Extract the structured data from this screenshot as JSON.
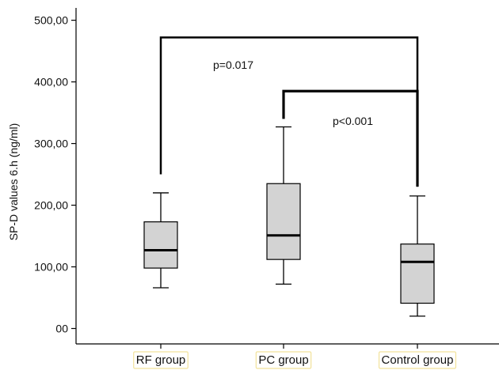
{
  "chart_data": {
    "type": "boxplot",
    "ylabel": "SP-D values 6.h (ng/ml)",
    "xlabel": "",
    "ylim": [
      -25,
      520
    ],
    "yticks": [
      {
        "value": 0,
        "label": "00"
      },
      {
        "value": 100,
        "label": "100,00"
      },
      {
        "value": 200,
        "label": "200,00"
      },
      {
        "value": 300,
        "label": "300,00"
      },
      {
        "value": 400,
        "label": "400,00"
      },
      {
        "value": 500,
        "label": "500,00"
      }
    ],
    "categories": [
      "RF group",
      "PC group",
      "Control group"
    ],
    "boxes": [
      {
        "category": "RF group",
        "min": 66,
        "q1": 98,
        "median": 127,
        "q3": 173,
        "max": 220
      },
      {
        "category": "PC group",
        "min": 72,
        "q1": 112,
        "median": 151,
        "q3": 235,
        "max": 327
      },
      {
        "category": "Control group",
        "min": 20,
        "q1": 41,
        "median": 108,
        "q3": 137,
        "max": 215
      }
    ],
    "comparisons": [
      {
        "from": "RF group",
        "to": "Control group",
        "label": "p=0.017",
        "bracket_y": 472,
        "from_drop": 250,
        "to_drop": 230
      },
      {
        "from": "PC group",
        "to": "Control group",
        "label": "p<0.001",
        "bracket_y": 385,
        "from_drop": 340,
        "to_drop": 230
      }
    ],
    "colors": {
      "box_fill": "#d3d3d3",
      "stroke": "#000000",
      "label_border": "#f2e29a"
    }
  }
}
